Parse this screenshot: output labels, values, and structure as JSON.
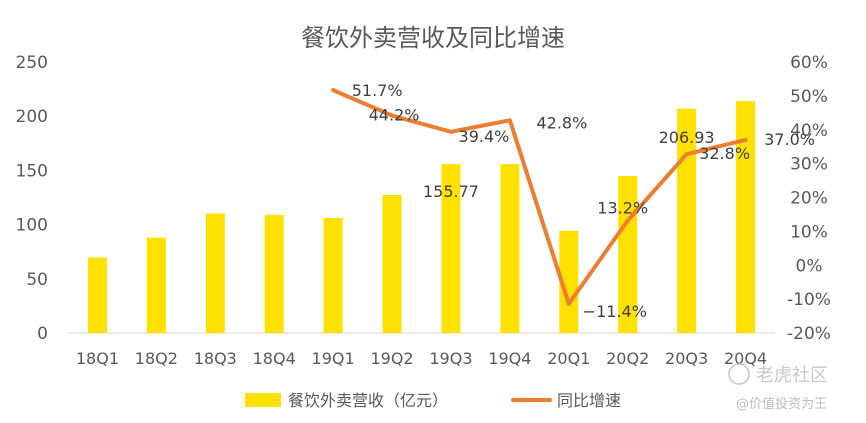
{
  "chart_data": {
    "type": "bar+line",
    "title": "餐饮外卖营收及同比增速",
    "categories": [
      "18Q1",
      "18Q2",
      "18Q3",
      "18Q4",
      "19Q1",
      "19Q2",
      "19Q3",
      "19Q4",
      "20Q1",
      "20Q2",
      "20Q3",
      "20Q4"
    ],
    "series": [
      {
        "name": "餐饮外卖营收（亿元）",
        "type": "bar",
        "axis": "left",
        "color": "#FFE100",
        "values": [
          69.7,
          88.0,
          110.3,
          108.8,
          106.1,
          127.3,
          155.77,
          155.8,
          94.3,
          144.8,
          206.93,
          213.9
        ]
      },
      {
        "name": "同比增速",
        "type": "line",
        "axis": "right",
        "color": "#ED7D31",
        "values": [
          null,
          null,
          null,
          null,
          51.7,
          44.2,
          39.4,
          42.8,
          -11.4,
          13.2,
          32.8,
          37.0
        ]
      }
    ],
    "bar_labels": [
      {
        "index": 6,
        "text": "155.77"
      },
      {
        "index": 10,
        "text": "206.93"
      }
    ],
    "line_labels": [
      {
        "index": 4,
        "text": "51.7%"
      },
      {
        "index": 5,
        "text": "44.2%"
      },
      {
        "index": 6,
        "text": "39.4%"
      },
      {
        "index": 7,
        "text": "42.8%"
      },
      {
        "index": 8,
        "text": "−11.4%"
      },
      {
        "index": 9,
        "text": "13.2%"
      },
      {
        "index": 10,
        "text": "32.8%"
      },
      {
        "index": 11,
        "text": "37.0%"
      }
    ],
    "y_left": {
      "min": 0,
      "max": 250,
      "ticks": [
        "0",
        "50",
        "100",
        "150",
        "200",
        "250"
      ]
    },
    "y_right": {
      "min": -20,
      "max": 60,
      "ticks": [
        "-20%",
        "-10%",
        "0%",
        "10%",
        "20%",
        "30%",
        "40%",
        "50%",
        "60%"
      ]
    },
    "grid": false,
    "legend_position": "bottom"
  },
  "watermark": {
    "brand": "老虎社区",
    "handle": "@价值投资为王"
  }
}
